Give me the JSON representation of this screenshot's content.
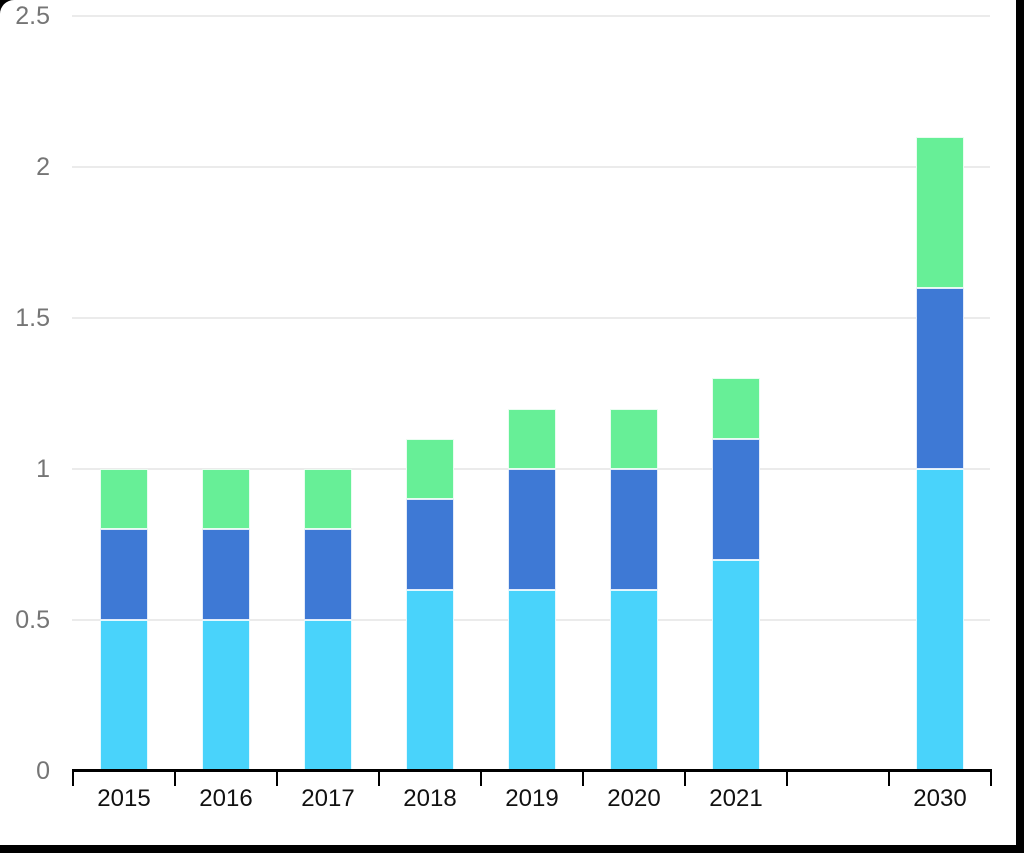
{
  "page": {
    "background_color": "#000000",
    "canvas_color": "#ffffff"
  },
  "chart_data": {
    "type": "bar",
    "stacked": true,
    "title": "",
    "xlabel": "",
    "ylabel": "",
    "categories": [
      "2015",
      "2016",
      "2017",
      "2018",
      "2019",
      "2020",
      "2021",
      "2030"
    ],
    "category_slots": [
      0,
      1,
      2,
      3,
      4,
      5,
      6,
      8
    ],
    "num_slots": 9,
    "series": [
      {
        "name": "bottom-segment-light-blue",
        "color": "#49D3FB",
        "values": [
          0.5,
          0.5,
          0.5,
          0.6,
          0.6,
          0.6,
          0.7,
          1.0
        ]
      },
      {
        "name": "middle-segment-dark-blue",
        "color": "#3E79D5",
        "values": [
          0.3,
          0.3,
          0.3,
          0.3,
          0.4,
          0.4,
          0.4,
          0.6
        ]
      },
      {
        "name": "top-segment-green",
        "color": "#67EF97",
        "values": [
          0.2,
          0.2,
          0.2,
          0.2,
          0.2,
          0.2,
          0.2,
          0.5
        ]
      }
    ],
    "stack_totals": [
      1.0,
      1.0,
      1.0,
      1.1,
      1.2,
      1.2,
      1.3,
      2.1
    ],
    "ylim": [
      0,
      2.5
    ],
    "yticks": [
      0,
      0.5,
      1,
      1.5,
      2,
      2.5
    ],
    "ytick_labels": [
      "0",
      "0.5",
      "1",
      "1.5",
      "2",
      "2.5"
    ],
    "grid": true,
    "legend": "none",
    "colors": {
      "axis": "#000000",
      "gridline": "#ebebeb",
      "ytick_label": "#757575",
      "xtick_label": "#111111",
      "segment_outline": "rgba(255,255,255,0.85)"
    }
  }
}
